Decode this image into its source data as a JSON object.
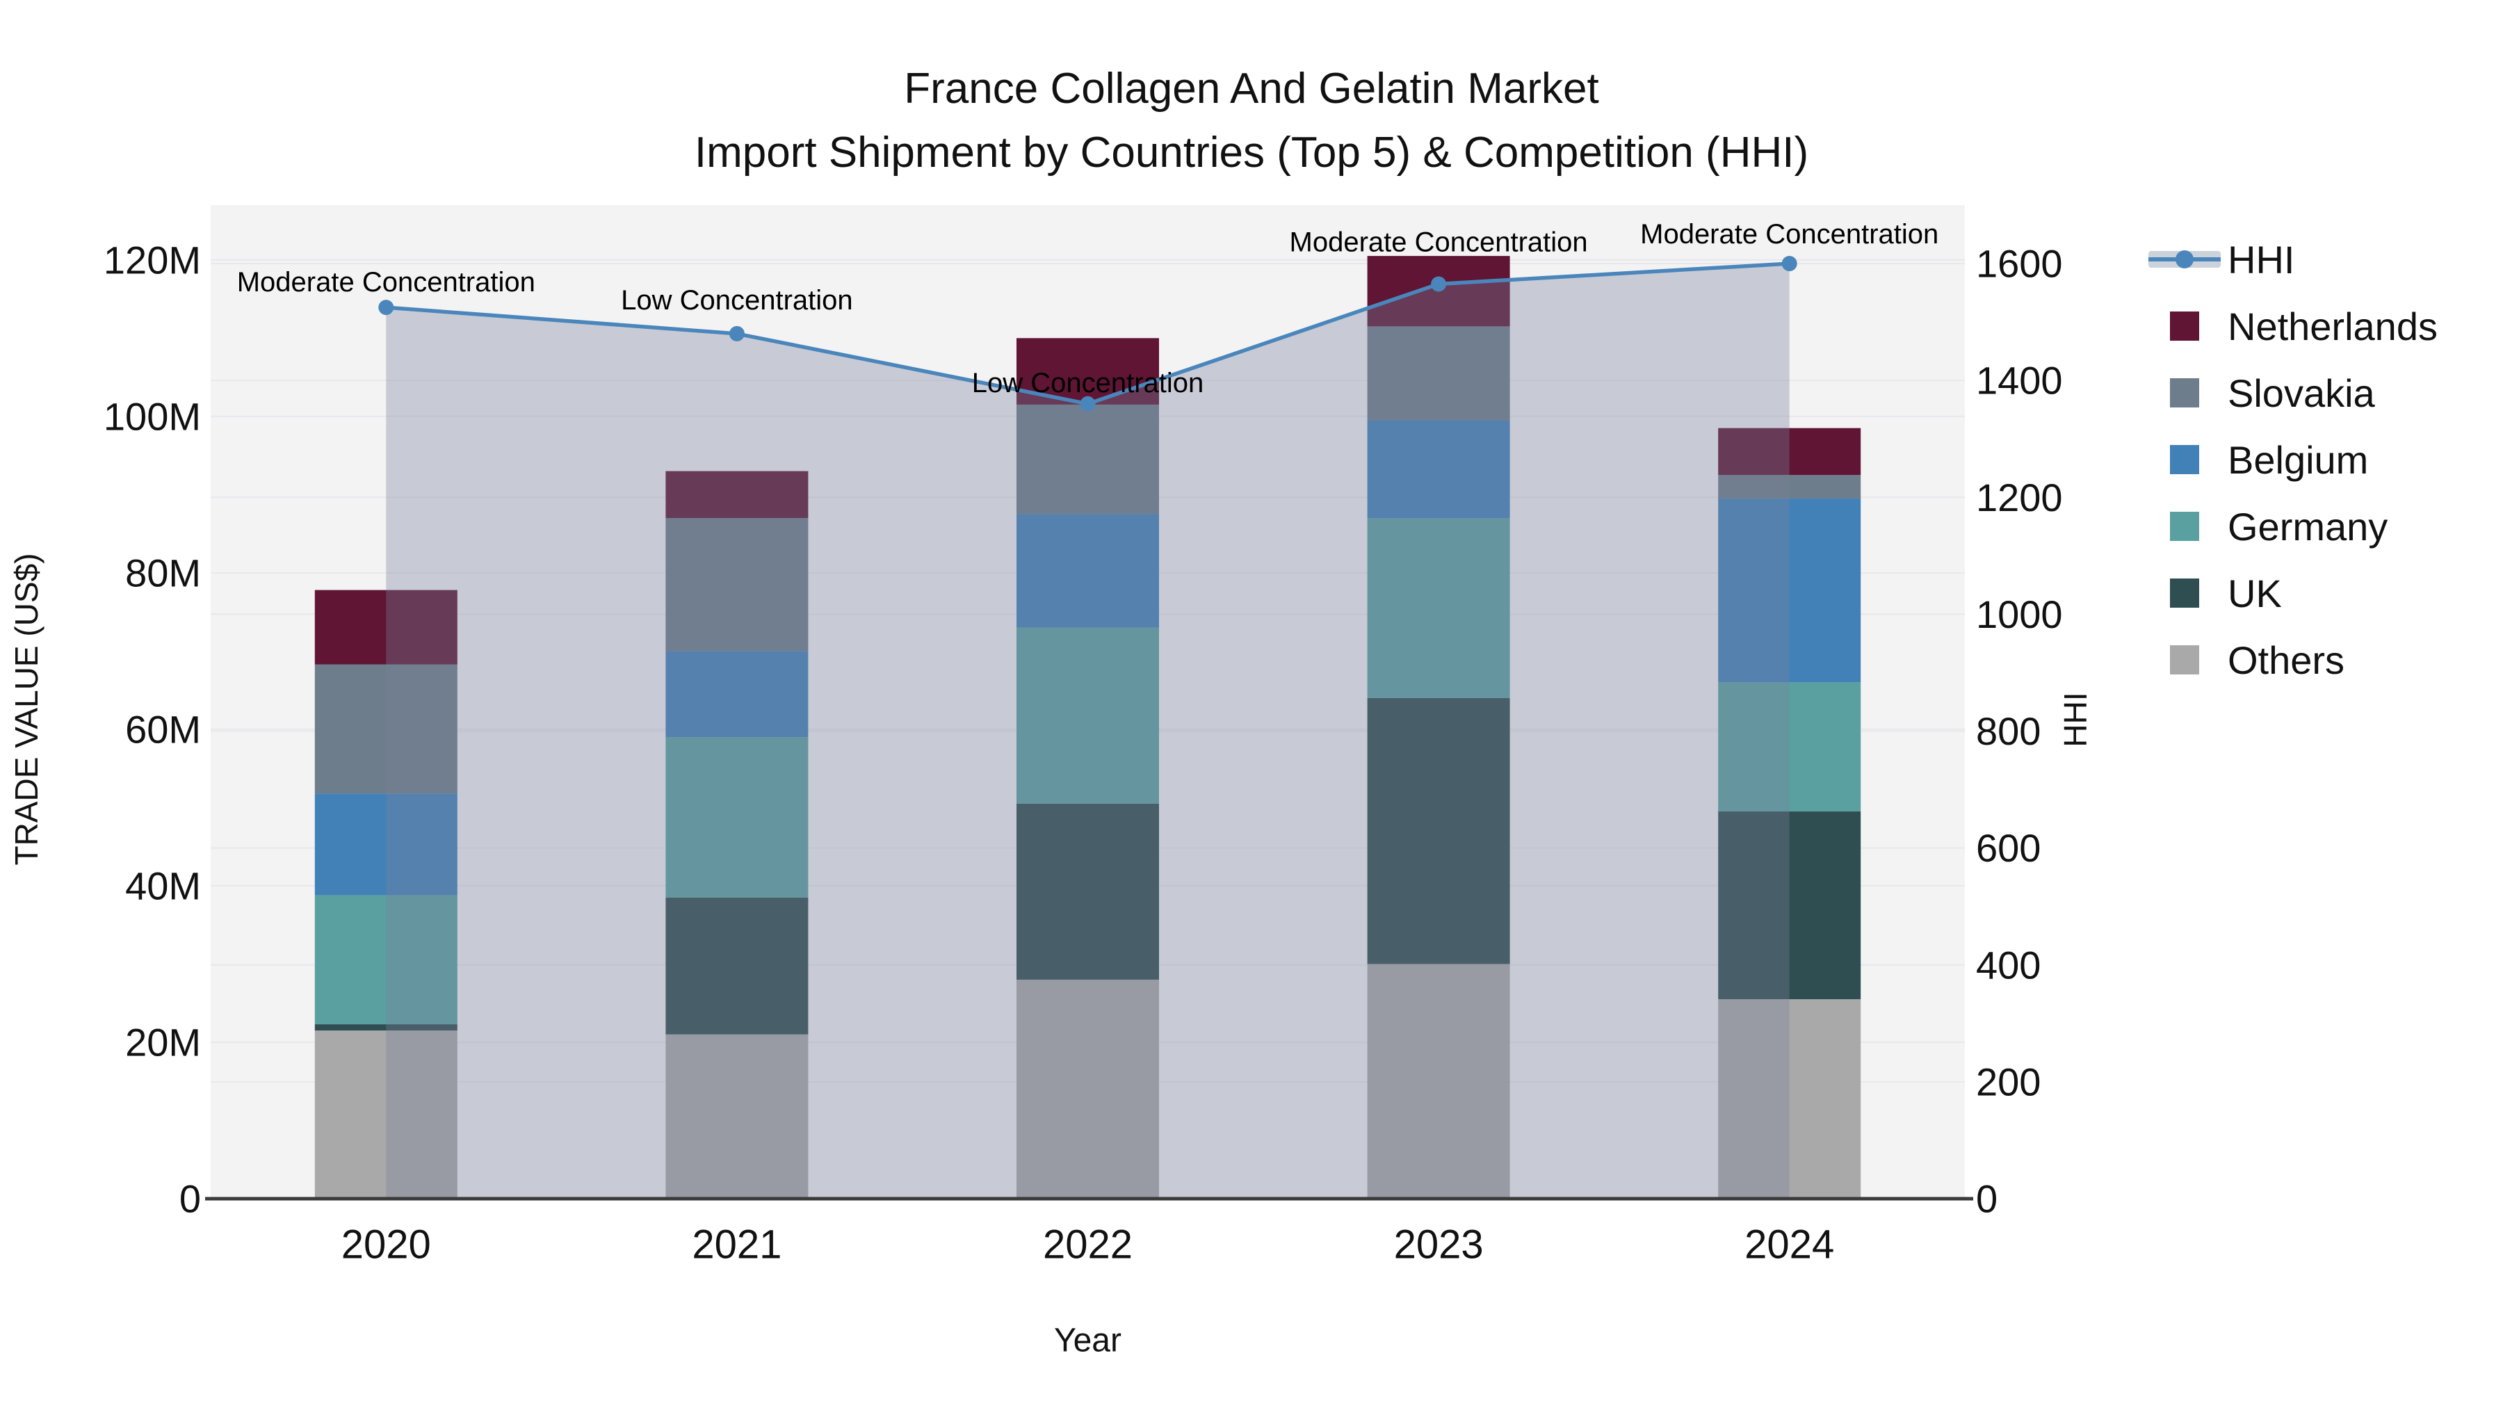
{
  "title": {
    "line1": "France Collagen And Gelatin Market",
    "line2": "Import Shipment by Countries (Top 5) & Competition (HHI)"
  },
  "legend": {
    "items": [
      {
        "label": "HHI",
        "type": "line",
        "color": "#4a86bb"
      },
      {
        "label": "Netherlands",
        "type": "swatch",
        "color": "#5f1533"
      },
      {
        "label": "Slovakia",
        "type": "swatch",
        "color": "#6e7d8b"
      },
      {
        "label": "Belgium",
        "type": "swatch",
        "color": "#4181b8"
      },
      {
        "label": "Germany",
        "type": "swatch",
        "color": "#5ba0a1"
      },
      {
        "label": "UK",
        "type": "swatch",
        "color": "#2f4e51"
      },
      {
        "label": "Others",
        "type": "swatch",
        "color": "#a9a9a9"
      }
    ]
  },
  "chart_data": {
    "type": "bar",
    "subtype": "stacked-bars-with-line-overlay",
    "title": "France Collagen And Gelatin Market Import Shipment by Countries (Top 5) & Competition (HHI)",
    "categories": [
      "2020",
      "2021",
      "2022",
      "2023",
      "2024"
    ],
    "xlabel": "Year",
    "ylabel_left": "TRADE VALUE (US$)",
    "ylabel_right": "HHI",
    "units_left": "US$ millions",
    "series": [
      {
        "name": "Others",
        "color": "#a9a9a9",
        "values": [
          21.5,
          21.0,
          28.0,
          30.0,
          25.5
        ]
      },
      {
        "name": "UK",
        "color": "#2f4e51",
        "values": [
          0.8,
          17.5,
          22.5,
          34.0,
          24.0
        ]
      },
      {
        "name": "Germany",
        "color": "#5ba0a1",
        "values": [
          16.5,
          20.5,
          22.5,
          23.0,
          16.5
        ]
      },
      {
        "name": "Belgium",
        "color": "#4181b8",
        "values": [
          13.0,
          11.0,
          14.5,
          12.5,
          23.5
        ]
      },
      {
        "name": "Slovakia",
        "color": "#6e7d8b",
        "values": [
          16.5,
          17.0,
          14.0,
          12.0,
          3.0
        ]
      },
      {
        "name": "Netherlands",
        "color": "#5f1533",
        "values": [
          9.5,
          6.0,
          8.5,
          9.0,
          6.0
        ]
      }
    ],
    "line_series": {
      "name": "HHI",
      "axis": "right",
      "color": "#4a86bb",
      "fill_color": "rgba(120,130,155,0.35)",
      "values": [
        1525,
        1480,
        1360,
        1565,
        1600
      ]
    },
    "annotations": [
      {
        "text": "Moderate Concentration",
        "category": "2020",
        "dy": 36
      },
      {
        "text": "Low Concentration",
        "category": "2021",
        "dy": 48
      },
      {
        "text": "Low Concentration",
        "category": "2022",
        "dy": 30
      },
      {
        "text": "Moderate Concentration",
        "category": "2023",
        "dy": 60
      },
      {
        "text": "Moderate Concentration",
        "category": "2024",
        "dy": 42
      }
    ],
    "ylim_left": [
      0,
      127
    ],
    "ylim_right": [
      0,
      1700
    ],
    "ytick_vals_left": [
      0,
      20,
      40,
      60,
      80,
      100,
      120
    ],
    "ytick_labels_left": [
      "0",
      "20M",
      "40M",
      "60M",
      "80M",
      "100M",
      "120M"
    ],
    "ytick_vals_right": [
      0,
      200,
      400,
      600,
      800,
      1000,
      1200,
      1400,
      1600
    ],
    "ytick_labels_right": [
      "0",
      "200",
      "400",
      "600",
      "800",
      "1000",
      "1200",
      "1400",
      "1600"
    ],
    "grid": true,
    "legend_position": "right",
    "plot_bg": "#f3f3f4",
    "grid_color": "#e8e8eb",
    "axis_line_color": "#3a3a3a",
    "text_color": "#111111"
  }
}
